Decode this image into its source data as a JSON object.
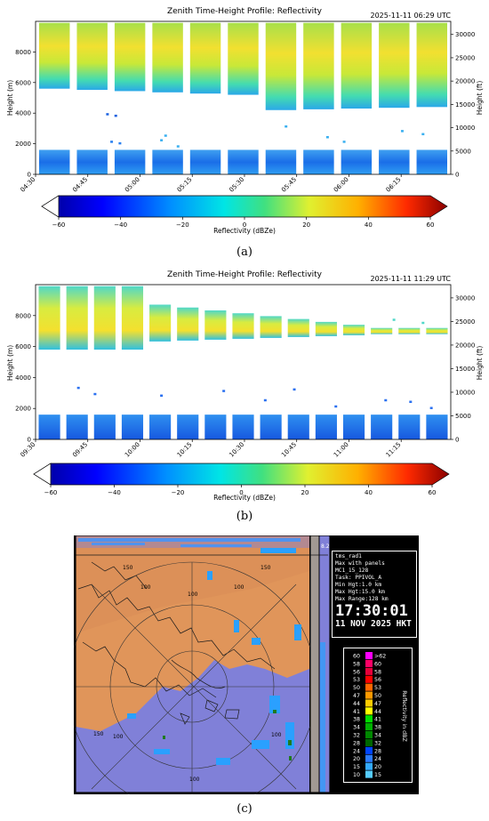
{
  "panels": [
    {
      "label": "(a)",
      "title": "Zenith Time-Height Profile: Reflectivity",
      "timestamp": "2025-11-11 06:29 UTC",
      "ylabel_left": "Height (m)",
      "ylabel_right": "Height (ft)",
      "colorbar_label": "Reflectivity (dBZe)",
      "colorbar_ticks": [
        "−60",
        "−40",
        "−20",
        "0",
        "20",
        "40",
        "60"
      ],
      "left_ticks": [
        "0",
        "2000",
        "4000",
        "6000",
        "8000"
      ],
      "right_ticks": [
        "0",
        "5000",
        "10000",
        "15000",
        "20000",
        "25000",
        "30000"
      ],
      "x_ticks": [
        "04:30",
        "04:45",
        "05:00",
        "05:15",
        "05:30",
        "05:45",
        "06:00",
        "06:15"
      ]
    },
    {
      "label": "(b)",
      "title": "Zenith Time-Height Profile: Reflectivity",
      "timestamp": "2025-11-11 11:29 UTC",
      "ylabel_left": "Height (m)",
      "ylabel_right": "Height (ft)",
      "colorbar_label": "Reflectivity (dBZe)",
      "colorbar_ticks": [
        "−60",
        "−40",
        "−20",
        "0",
        "20",
        "40",
        "60"
      ],
      "left_ticks": [
        "0",
        "2000",
        "4000",
        "6000",
        "8000"
      ],
      "right_ticks": [
        "0",
        "5000",
        "10000",
        "15000",
        "20000",
        "25000",
        "30000"
      ],
      "x_ticks": [
        "09:30",
        "09:45",
        "10:00",
        "10:15",
        "10:30",
        "10:45",
        "11:00",
        "11:15"
      ]
    }
  ],
  "radar": {
    "label": "(c)",
    "corner_value": "8.2",
    "range_labels": [
      "150",
      "100",
      "100",
      "150",
      "100",
      "150",
      "100",
      "100",
      "100"
    ],
    "info_lines": [
      "tms_rad1",
      "Max with panels",
      "MC1_15_128",
      "Task: PPIVOL_A",
      "Min Hgt:1.0 km",
      "Max Hgt:15.0 km",
      "Max Range:128 km"
    ],
    "time": "17:30:01",
    "date": "11 NOV 2025 HKT",
    "legend_title": "Reflectivity in dBZ",
    "legend_rows": [
      {
        "low": "60",
        "high": ">62",
        "color": "#ff00ff"
      },
      {
        "low": "58",
        "high": "60",
        "color": "#ff0066"
      },
      {
        "low": "56",
        "high": "58",
        "color": "#e6003a"
      },
      {
        "low": "53",
        "high": "56",
        "color": "#ff0000"
      },
      {
        "low": "50",
        "high": "53",
        "color": "#ff6600"
      },
      {
        "low": "47",
        "high": "50",
        "color": "#ff9900"
      },
      {
        "low": "44",
        "high": "47",
        "color": "#ffcc00"
      },
      {
        "low": "41",
        "high": "44",
        "color": "#ffff00"
      },
      {
        "low": "38",
        "high": "41",
        "color": "#00dd00"
      },
      {
        "low": "34",
        "high": "38",
        "color": "#00b000"
      },
      {
        "low": "32",
        "high": "34",
        "color": "#008800"
      },
      {
        "low": "28",
        "high": "32",
        "color": "#006600"
      },
      {
        "low": "24",
        "high": "28",
        "color": "#0044ff"
      },
      {
        "low": "20",
        "high": "24",
        "color": "#2a7aff"
      },
      {
        "low": "15",
        "high": "20",
        "color": "#33aaff"
      },
      {
        "low": "10",
        "high": "15",
        "color": "#55ccff"
      }
    ]
  },
  "chart_data": [
    {
      "type": "heatmap",
      "title": "Zenith Time-Height Profile: Reflectivity",
      "xlabel": "",
      "ylabel": "Height (m)",
      "ylabel_right": "Height (ft)",
      "x_ticks": [
        "04:30",
        "04:45",
        "05:00",
        "05:15",
        "05:30",
        "05:45",
        "06:00",
        "06:15"
      ],
      "ylim": [
        0,
        10000
      ],
      "ylim_right_ft": [
        0,
        32800
      ],
      "colorbar": {
        "label": "Reflectivity (dBZe)",
        "range": [
          -60,
          60
        ]
      },
      "layers": [
        {
          "name_from_image": "upper cloud",
          "height_m": [
            4000,
            9900
          ],
          "reflectivity_dbze": [
            0,
            30
          ]
        },
        {
          "name_from_image": "low echo",
          "height_m": [
            0,
            1600
          ],
          "reflectivity_dbze": [
            -45,
            -15
          ]
        }
      ]
    },
    {
      "type": "heatmap",
      "title": "Zenith Time-Height Profile: Reflectivity",
      "xlabel": "",
      "ylabel": "Height (m)",
      "ylabel_right": "Height (ft)",
      "x_ticks": [
        "09:30",
        "09:45",
        "10:00",
        "10:15",
        "10:30",
        "10:45",
        "11:00",
        "11:15"
      ],
      "ylim": [
        0,
        10000
      ],
      "ylim_right_ft": [
        0,
        32800
      ],
      "colorbar": {
        "label": "Reflectivity (dBZe)",
        "range": [
          -60,
          60
        ]
      },
      "layers": [
        {
          "name_from_image": "upper cloud",
          "height_m": [
            5500,
            9900
          ],
          "reflectivity_dbze": [
            -10,
            25
          ]
        },
        {
          "name_from_image": "low echo",
          "height_m": [
            0,
            1600
          ],
          "reflectivity_dbze": [
            -45,
            -15
          ]
        }
      ]
    }
  ]
}
